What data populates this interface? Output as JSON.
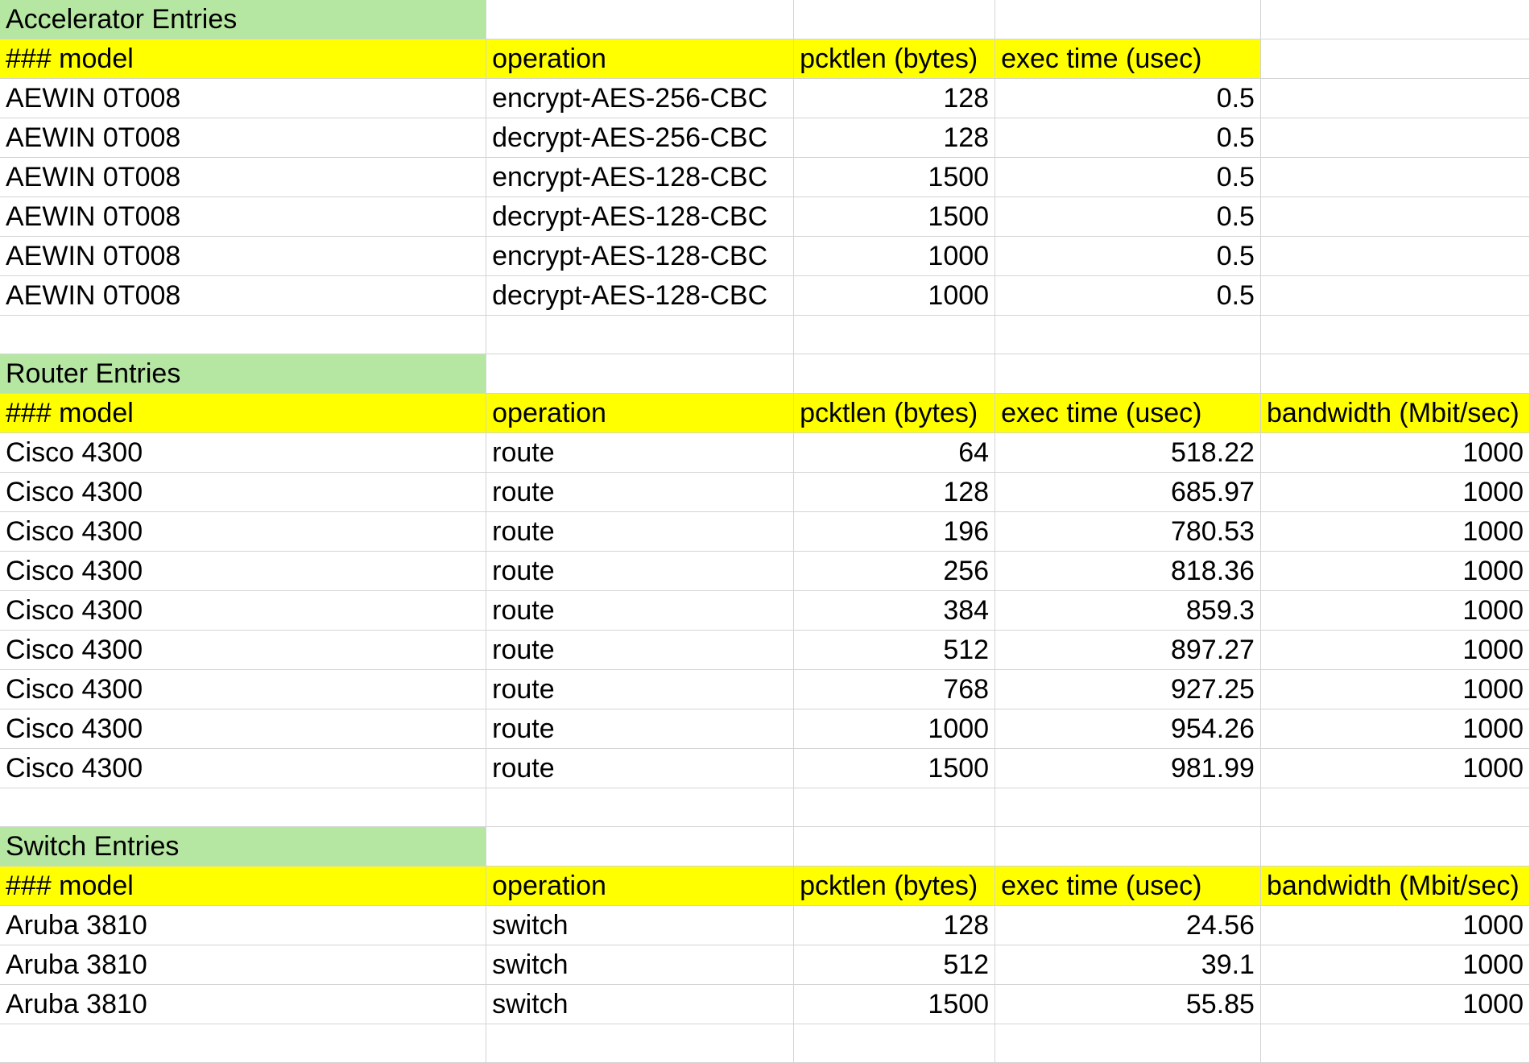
{
  "sections": [
    {
      "title": "Accelerator Entries",
      "headers": [
        "### model",
        "operation",
        "pcktlen (bytes)",
        "exec time (usec)",
        ""
      ],
      "rows": [
        [
          "AEWIN 0T008",
          "encrypt-AES-256-CBC",
          "128",
          "0.5",
          ""
        ],
        [
          "AEWIN 0T008",
          "decrypt-AES-256-CBC",
          "128",
          "0.5",
          ""
        ],
        [
          "AEWIN 0T008",
          "encrypt-AES-128-CBC",
          "1500",
          "0.5",
          ""
        ],
        [
          "AEWIN 0T008",
          "decrypt-AES-128-CBC",
          "1500",
          "0.5",
          ""
        ],
        [
          "AEWIN 0T008",
          "encrypt-AES-128-CBC",
          "1000",
          "0.5",
          ""
        ],
        [
          "AEWIN 0T008",
          "decrypt-AES-128-CBC",
          "1000",
          "0.5",
          ""
        ]
      ]
    },
    {
      "title": "Router Entries",
      "headers": [
        "### model",
        "operation",
        "pcktlen (bytes)",
        "exec time (usec)",
        "bandwidth (Mbit/sec)"
      ],
      "rows": [
        [
          "Cisco 4300",
          "route",
          "64",
          "518.22",
          "1000"
        ],
        [
          "Cisco 4300",
          "route",
          "128",
          "685.97",
          "1000"
        ],
        [
          "Cisco 4300",
          "route",
          "196",
          "780.53",
          "1000"
        ],
        [
          "Cisco 4300",
          "route",
          "256",
          "818.36",
          "1000"
        ],
        [
          "Cisco 4300",
          "route",
          "384",
          "859.3",
          "1000"
        ],
        [
          "Cisco 4300",
          "route",
          "512",
          "897.27",
          "1000"
        ],
        [
          "Cisco 4300",
          "route",
          "768",
          "927.25",
          "1000"
        ],
        [
          "Cisco 4300",
          "route",
          "1000",
          "954.26",
          "1000"
        ],
        [
          "Cisco 4300",
          "route",
          "1500",
          "981.99",
          "1000"
        ]
      ]
    },
    {
      "title": "Switch Entries",
      "headers": [
        "### model",
        "operation",
        "pcktlen (bytes)",
        "exec time (usec)",
        "bandwidth (Mbit/sec)"
      ],
      "rows": [
        [
          "Aruba 3810",
          "switch",
          "128",
          "24.56",
          "1000"
        ],
        [
          "Aruba 3810",
          "switch",
          "512",
          "39.1",
          "1000"
        ],
        [
          "Aruba 3810",
          "switch",
          "1500",
          "55.85",
          "1000"
        ]
      ]
    }
  ],
  "colors": {
    "title_fill": "#b5e6a2",
    "header_fill": "#ffff00",
    "gridline": "#d4d4d4"
  }
}
